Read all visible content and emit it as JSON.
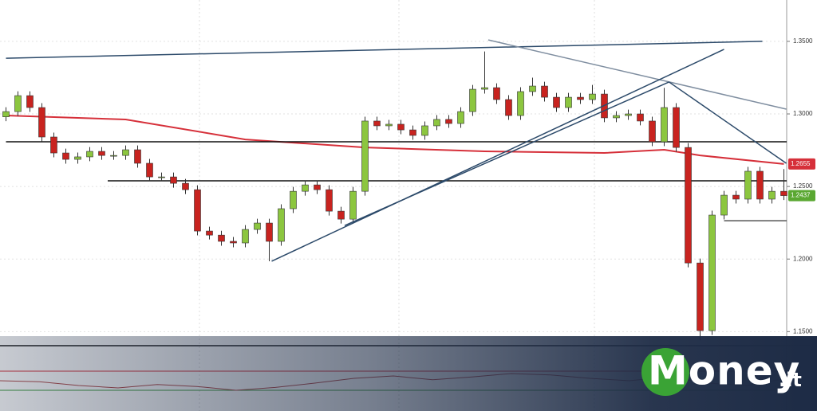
{
  "chart_data": {
    "type": "candlestick",
    "ylim": [
      1.1425,
      1.3785
    ],
    "yticks": [
      {
        "value": 1.35,
        "label": "1.3500"
      },
      {
        "value": 1.3,
        "label": "1.3000"
      },
      {
        "value": 1.25,
        "label": "1.2500"
      },
      {
        "value": 1.2,
        "label": "1.2000"
      },
      {
        "value": 1.15,
        "label": "1.1500"
      }
    ],
    "grid": true,
    "up_color": "#8cc63f",
    "down_color": "#c8231f",
    "open": [
      1.298,
      1.3016,
      1.3126,
      1.3044,
      1.2841,
      1.2731,
      1.2687,
      1.2704,
      1.2742,
      1.2714,
      1.2714,
      1.2753,
      1.266,
      1.2566,
      1.2566,
      1.2522,
      1.2478,
      1.2193,
      1.2165,
      1.2122,
      1.2111,
      1.2204,
      1.2248,
      1.2122,
      1.2347,
      1.2467,
      1.2511,
      1.2478,
      1.233,
      1.2275,
      1.2467,
      1.2951,
      1.2918,
      1.2929,
      1.289,
      1.2852,
      1.2918,
      1.2962,
      1.2934,
      1.3016,
      1.317,
      1.3181,
      1.3099,
      1.2989,
      1.3154,
      1.3192,
      1.3115,
      1.3044,
      1.3115,
      1.3099,
      1.3137,
      1.2973,
      1.2989,
      1.3,
      1.2951,
      1.2808,
      1.3044,
      1.2769,
      1.1973,
      1.1507,
      1.2303,
      1.244,
      1.2413,
      1.2605,
      1.2413,
      1.2467
    ],
    "high": [
      1.3046,
      1.3156,
      1.3156,
      1.3074,
      1.2871,
      1.2761,
      1.2734,
      1.2772,
      1.2772,
      1.2744,
      1.2783,
      1.2783,
      1.269,
      1.2596,
      1.2596,
      1.2552,
      1.2508,
      1.2223,
      1.2195,
      1.2152,
      1.2234,
      1.2278,
      1.2278,
      1.2377,
      1.2497,
      1.2541,
      1.2541,
      1.2508,
      1.236,
      1.2497,
      1.2981,
      1.2981,
      1.2959,
      1.2959,
      1.292,
      1.2948,
      1.2992,
      1.2992,
      1.3046,
      1.32,
      1.343,
      1.3211,
      1.3129,
      1.3184,
      1.325,
      1.3222,
      1.3145,
      1.3145,
      1.3145,
      1.32,
      1.3167,
      1.3019,
      1.303,
      1.303,
      1.2981,
      1.318,
      1.3074,
      1.2799,
      1.2003,
      1.2333,
      1.247,
      1.247,
      1.2635,
      1.2635,
      1.2497,
      1.262
    ],
    "low": [
      1.295,
      1.2986,
      1.3014,
      1.2811,
      1.2701,
      1.2657,
      1.2657,
      1.2674,
      1.2684,
      1.2684,
      1.2684,
      1.263,
      1.2536,
      1.2536,
      1.2492,
      1.2448,
      1.2163,
      1.2135,
      1.2092,
      1.2081,
      1.2081,
      1.2174,
      1.1985,
      1.2092,
      1.2317,
      1.2437,
      1.2448,
      1.23,
      1.2245,
      1.2245,
      1.2437,
      1.2888,
      1.2888,
      1.286,
      1.2822,
      1.2822,
      1.2888,
      1.2904,
      1.2904,
      1.2986,
      1.314,
      1.3069,
      1.2959,
      1.2959,
      1.3124,
      1.3085,
      1.3014,
      1.3014,
      1.3069,
      1.3069,
      1.2943,
      1.2943,
      1.2959,
      1.2921,
      1.2778,
      1.2778,
      1.2739,
      1.1943,
      1.144,
      1.1477,
      1.2273,
      1.2383,
      1.2383,
      1.2383,
      1.2383,
      1.2407
    ],
    "close": [
      1.3016,
      1.3126,
      1.3044,
      1.2841,
      1.2731,
      1.2687,
      1.2704,
      1.2742,
      1.2714,
      1.2714,
      1.2753,
      1.266,
      1.2566,
      1.2566,
      1.2522,
      1.2478,
      1.2193,
      1.2165,
      1.2122,
      1.2111,
      1.2204,
      1.2248,
      1.2122,
      1.2347,
      1.2467,
      1.2511,
      1.2478,
      1.233,
      1.2275,
      1.2467,
      1.2951,
      1.2918,
      1.2929,
      1.289,
      1.2852,
      1.2918,
      1.2962,
      1.2934,
      1.3016,
      1.317,
      1.3181,
      1.3099,
      1.2989,
      1.3154,
      1.3192,
      1.3115,
      1.3044,
      1.3115,
      1.3099,
      1.3137,
      1.2973,
      1.2989,
      1.3,
      1.2951,
      1.2808,
      1.3044,
      1.2769,
      1.1973,
      1.1507,
      1.2303,
      1.244,
      1.2413,
      1.2605,
      1.2413,
      1.2467,
      1.2437
    ],
    "ma": {
      "color": "#d6303a",
      "x": [
        0,
        10,
        20,
        30,
        40,
        50,
        55,
        58,
        65
      ],
      "values": [
        1.2989,
        1.2962,
        1.2824,
        1.2769,
        1.2742,
        1.2731,
        1.2753,
        1.2714,
        1.2655
      ]
    },
    "levels": [
      {
        "value": 1.2808,
        "from": 0,
        "color": "#111111"
      },
      {
        "value": 1.2539,
        "from": 8.5,
        "color": "#111111"
      },
      {
        "value": 1.2264,
        "from": 60,
        "color": "#555555"
      }
    ],
    "trendlines": [
      {
        "points": [
          [
            0,
            1.3384
          ],
          [
            63.2,
            1.35
          ]
        ],
        "color": "#2c4a6a"
      },
      {
        "points": [
          [
            40.3,
            1.351
          ],
          [
            65.2,
            1.3033
          ]
        ],
        "color": "#7f8ea0"
      },
      {
        "points": [
          [
            55.4,
            1.322
          ],
          [
            65.2,
            1.266
          ]
        ],
        "color": "#2c4a6a"
      },
      {
        "points": [
          [
            22.2,
            1.1985
          ],
          [
            60,
            1.3445
          ]
        ],
        "color": "#2c4a6a"
      },
      {
        "points": [
          [
            28.3,
            1.2231
          ],
          [
            55.4,
            1.322
          ]
        ],
        "color": "#2c4a6a"
      }
    ],
    "oscillator": {
      "ylim": [
        0,
        100
      ],
      "levels": [
        70,
        30
      ],
      "level_colors": [
        "#d6303a",
        "#3c9a3c"
      ],
      "color": "#b04a4a",
      "values": [
        50,
        48,
        40,
        35,
        42,
        38,
        30,
        36,
        45,
        55,
        60,
        52,
        58,
        65,
        62,
        55,
        50,
        58,
        45,
        40,
        55
      ]
    }
  },
  "watermark": {
    "text": "Money",
    "suffix": ".it"
  }
}
